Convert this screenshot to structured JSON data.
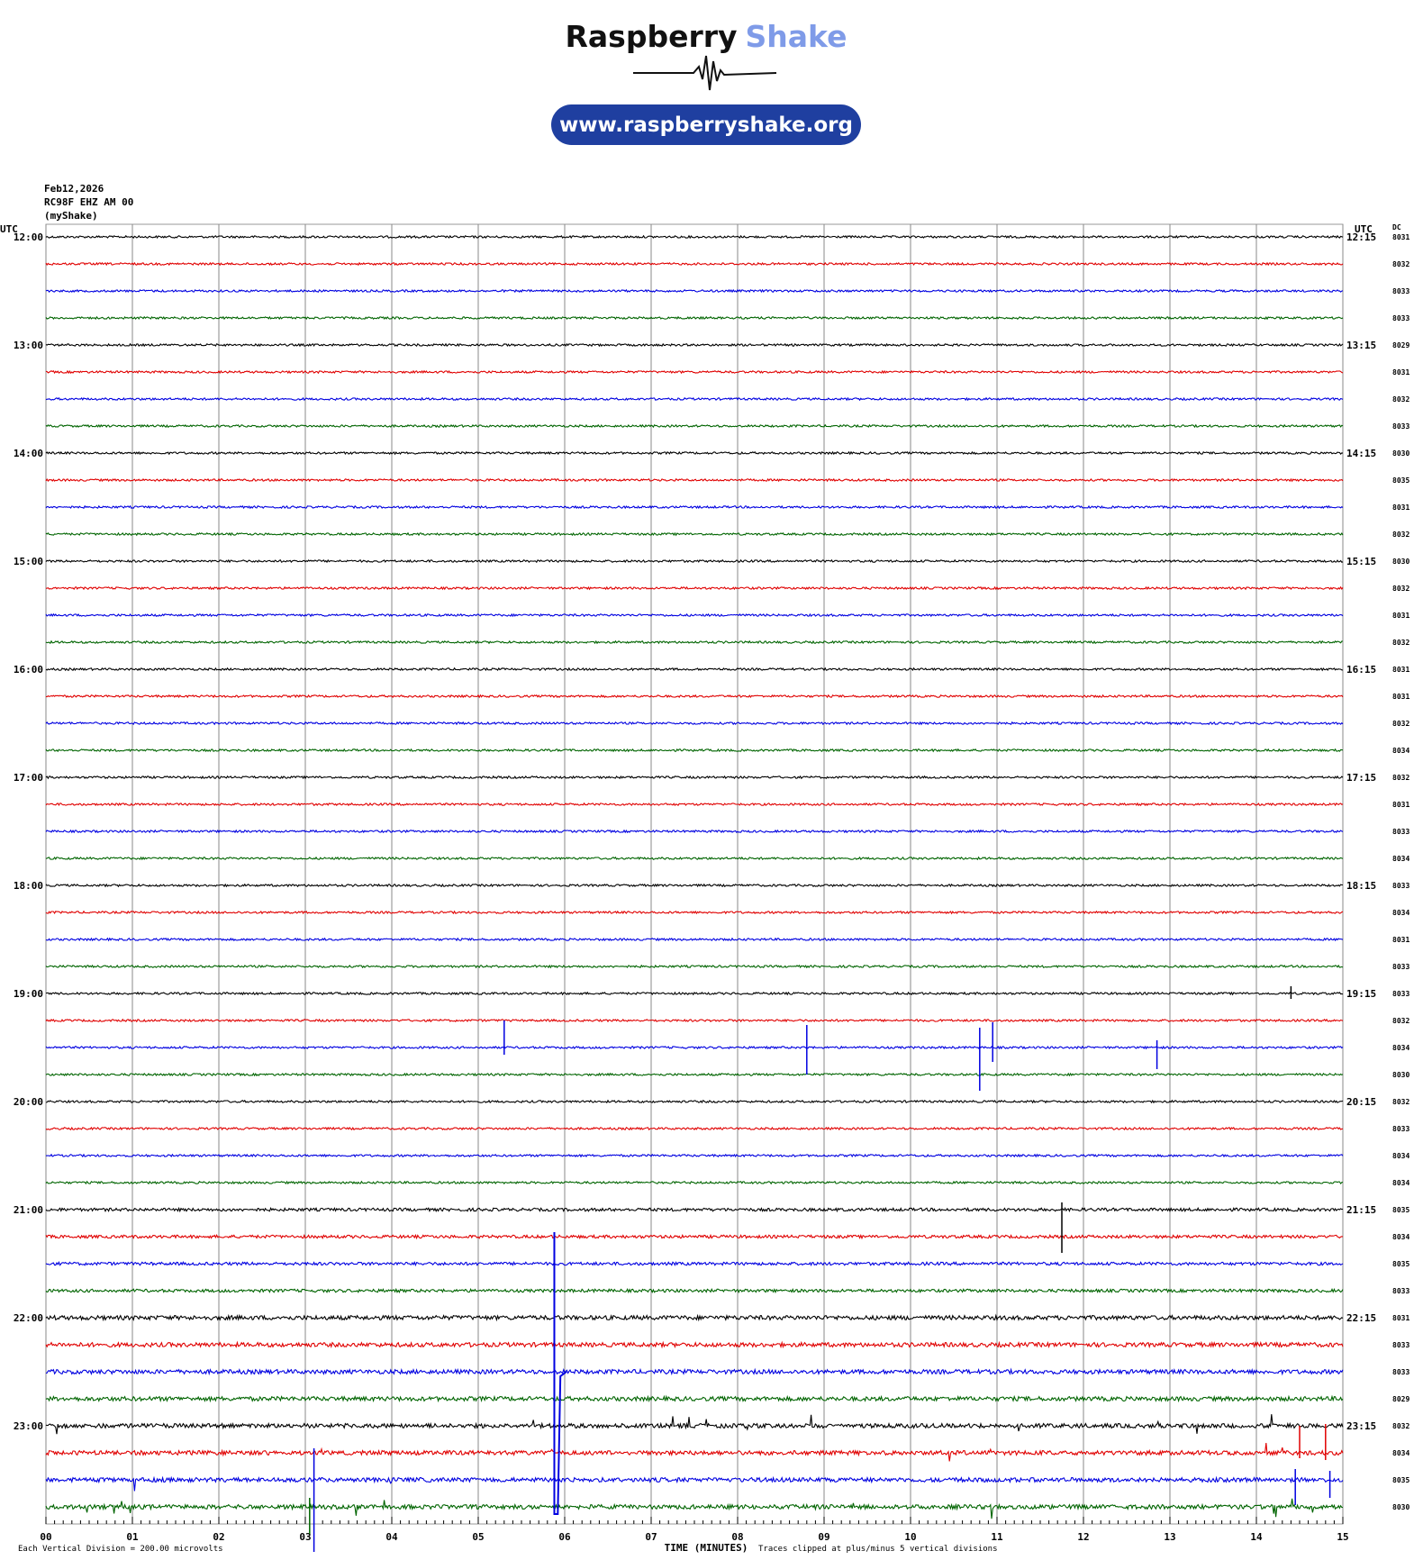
{
  "chart_data": {
    "type": "helicorder",
    "title": "Raspberry",
    "title_accent": "Shake",
    "url": "www.raspberryshake.org",
    "header": [
      "Feb12,2026",
      "RC98F EHZ AM 00",
      "(myShake)"
    ],
    "left_axis_label": "UTC",
    "right_axis_label": "UTC",
    "dc_label": "DC",
    "left_labels": [
      "12:00",
      "13:00",
      "14:00",
      "15:00",
      "16:00",
      "17:00",
      "18:00",
      "19:00",
      "20:00",
      "21:00",
      "22:00",
      "23:00"
    ],
    "right_labels": [
      "12:15",
      "13:15",
      "14:15",
      "15:15",
      "16:15",
      "17:15",
      "18:15",
      "19:15",
      "20:15",
      "21:15",
      "22:15",
      "23:15"
    ],
    "dc_values": [
      8031,
      8032,
      8033,
      8033,
      8029,
      8031,
      8032,
      8033,
      8030,
      8035,
      8031,
      8032,
      8030,
      8032,
      8031,
      8032,
      8031,
      8031,
      8032,
      8034,
      8032,
      8031,
      8033,
      8034,
      8033,
      8034,
      8031,
      8033,
      8033,
      8032,
      8034,
      8030,
      8032,
      8033,
      8034,
      8034,
      8035,
      8034,
      8035,
      8033,
      8031,
      8033,
      8033,
      8029,
      8032,
      8034,
      8035,
      8030
    ],
    "colors": [
      "#000000",
      "#e00000",
      "#0000e0",
      "#006400"
    ],
    "xlim": [
      0,
      15
    ],
    "xticks": [
      {
        "value": 0,
        "label": "00"
      },
      {
        "value": 1,
        "label": "01"
      },
      {
        "value": 2,
        "label": "02"
      },
      {
        "value": 3,
        "label": "03"
      },
      {
        "value": 4,
        "label": "04"
      },
      {
        "value": 5,
        "label": "05"
      },
      {
        "value": 6,
        "label": "06"
      },
      {
        "value": 7,
        "label": "07"
      },
      {
        "value": 8,
        "label": "08"
      },
      {
        "value": 9,
        "label": "09"
      },
      {
        "value": 10,
        "label": "10"
      },
      {
        "value": 11,
        "label": "11"
      },
      {
        "value": 12,
        "label": "12"
      },
      {
        "value": 13,
        "label": "13"
      },
      {
        "value": 14,
        "label": "14"
      },
      {
        "value": 15,
        "label": "15"
      }
    ],
    "xlabel": "TIME (MINUTES)",
    "scale_note": "Each Vertical Division =  200.00 microvolts",
    "clip_note": "Traces clipped at plus/minus 5 vertical divisions"
  }
}
